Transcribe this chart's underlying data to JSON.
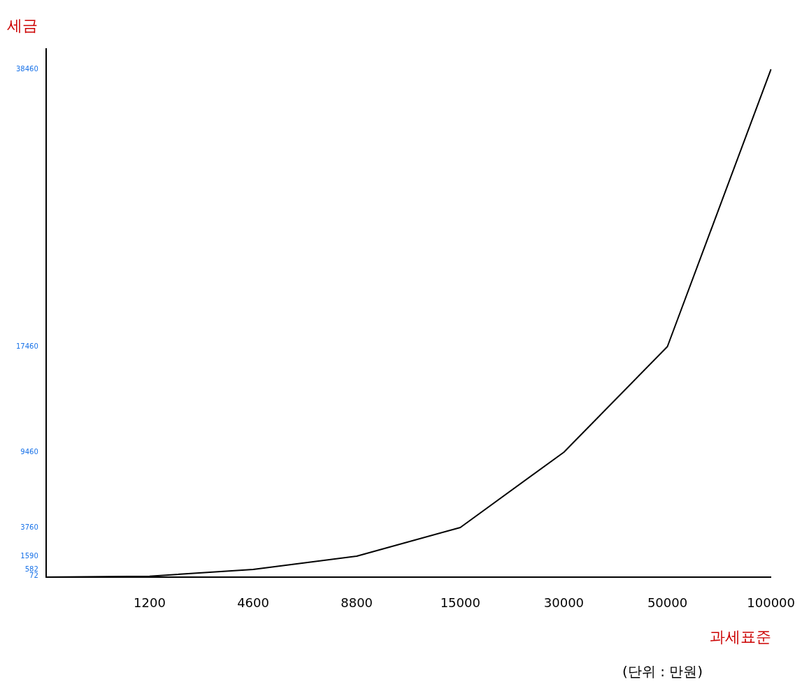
{
  "chart_data": {
    "type": "line",
    "xlabel": "과세표준",
    "ylabel": "세금",
    "categories": [
      null,
      "1200",
      "4600",
      "8800",
      "15000",
      "30000",
      "50000",
      "100000"
    ],
    "series": [
      {
        "color": "#000000",
        "values": [
          0,
          72,
          582,
          1590,
          3760,
          9460,
          17460,
          38460
        ]
      }
    ],
    "ylim": [
      0,
      40000
    ],
    "yticks": [
      72,
      582,
      1590,
      3760,
      9460,
      17460,
      38460
    ],
    "grid": false,
    "legend": false,
    "marker": "none",
    "line_style": "solid",
    "annotations": [
      "(단위 : 만원)"
    ]
  }
}
